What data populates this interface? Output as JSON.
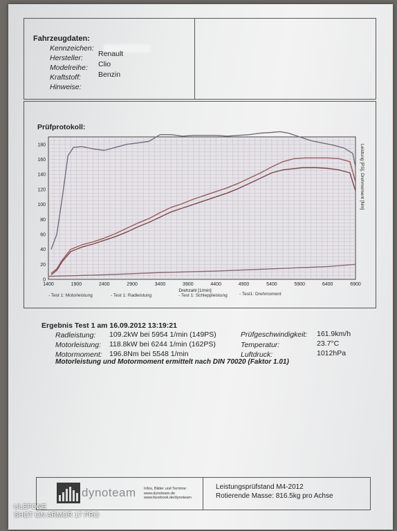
{
  "vehicle": {
    "title": "Fahrzeugdaten:",
    "fields": [
      {
        "label": "Kennzeichen:",
        "value": ""
      },
      {
        "label": "Hersteller:",
        "value": "Renault"
      },
      {
        "label": "Modelreihe:",
        "value": "Clio"
      },
      {
        "label": "Kraftstoff:",
        "value": "Benzin"
      },
      {
        "label": "Hinweise:",
        "value": ""
      }
    ]
  },
  "protocol": {
    "title": "Prüfprotokoll:"
  },
  "chart_data": {
    "type": "line",
    "title": "",
    "xlabel": "Drehzahl [1/min]",
    "ylabel": "Leistung [PS], Drehmoment [Nm]",
    "xlim": [
      1400,
      6900
    ],
    "ylim": [
      0,
      190
    ],
    "x_ticks": [
      1400,
      1900,
      2400,
      2900,
      3400,
      3900,
      4400,
      4900,
      5400,
      5900,
      6400,
      6900
    ],
    "y_ticks": [
      0,
      20,
      40,
      60,
      80,
      100,
      120,
      140,
      160,
      180
    ],
    "grid": true,
    "series": [
      {
        "name": "Test 1: Motorleistung",
        "color": "#9a5a5a",
        "x": [
          1450,
          1550,
          1650,
          1800,
          2000,
          2200,
          2400,
          2600,
          2800,
          3000,
          3200,
          3400,
          3600,
          3800,
          4000,
          4200,
          4400,
          4600,
          4800,
          5000,
          5200,
          5400,
          5600,
          5800,
          6000,
          6244,
          6400,
          6600,
          6800,
          6900
        ],
        "y": [
          8,
          14,
          26,
          40,
          46,
          50,
          55,
          61,
          68,
          75,
          81,
          89,
          96,
          101,
          107,
          112,
          117,
          122,
          128,
          135,
          142,
          150,
          157,
          161,
          162,
          162,
          162,
          161,
          157,
          130
        ]
      },
      {
        "name": "Test 1: Radleistung",
        "color": "#7a4848",
        "x": [
          1450,
          1550,
          1650,
          1800,
          2000,
          2200,
          2400,
          2600,
          2800,
          3000,
          3200,
          3400,
          3600,
          3800,
          4000,
          4200,
          4400,
          4600,
          4800,
          5000,
          5200,
          5400,
          5600,
          5954,
          6200,
          6400,
          6600,
          6800,
          6900
        ],
        "y": [
          6,
          12,
          24,
          37,
          43,
          47,
          52,
          57,
          63,
          70,
          76,
          83,
          90,
          95,
          100,
          105,
          110,
          115,
          121,
          128,
          135,
          142,
          146,
          149,
          149,
          148,
          146,
          142,
          118
        ]
      },
      {
        "name": "Test 1: Schleppleistung",
        "color": "#8a6a6a",
        "x": [
          1400,
          2400,
          3400,
          4400,
          5400,
          6400,
          6900
        ],
        "y": [
          4,
          6,
          9,
          11,
          14,
          17,
          20
        ]
      },
      {
        "name": "Test1: Drehmoment",
        "color": "#6e6e7e",
        "x": [
          1450,
          1550,
          1650,
          1750,
          1850,
          2000,
          2200,
          2400,
          2600,
          2800,
          3000,
          3200,
          3400,
          3600,
          3800,
          4000,
          4200,
          4400,
          4600,
          4800,
          5000,
          5200,
          5400,
          5548,
          5700,
          5900,
          6100,
          6300,
          6500,
          6700,
          6850,
          6900
        ],
        "y": [
          40,
          60,
          110,
          165,
          176,
          177,
          174,
          172,
          176,
          180,
          182,
          184,
          193,
          193,
          191,
          192,
          192,
          192,
          191,
          192,
          193,
          195,
          196,
          197,
          195,
          190,
          185,
          182,
          179,
          175,
          168,
          150
        ]
      }
    ]
  },
  "results": {
    "title": "Ergebnis Test 1 am 16.09.2012 13:19:21",
    "rows": [
      {
        "label": "Radleistung:",
        "value": "109.2kW  bei 5954 1/min (149PS)"
      },
      {
        "label": "Motorleistung:",
        "value": "118.8kW  bei 6244 1/min (162PS)"
      },
      {
        "label": "Motormoment:",
        "value": "196.8Nm  bei 5548 1/min"
      }
    ],
    "side": [
      {
        "label": "Prüfgeschwindigkeit:",
        "value": "161.9km/h"
      },
      {
        "label": "Temperatur:",
        "value": "23.7°C"
      },
      {
        "label": "Luftdruck:",
        "value": "1012hPa"
      }
    ],
    "note": "Motorleistung und Motormoment ermittelt nach DIN 70020 (Faktor 1.01)"
  },
  "footer": {
    "brand": "dynoteam",
    "info_lines": [
      "Infos, Bilder und Termine:",
      "www.dynoteam.de",
      "www.facebook.de/dynoteam"
    ],
    "stand": "Leistungsprüfstand M4-2012",
    "mass": "Rotierende Masse: 816.5kg pro Achse"
  },
  "watermark": {
    "line1": "ULEFONE",
    "line2": "SHOT ON ARMOR 17 PRO"
  }
}
